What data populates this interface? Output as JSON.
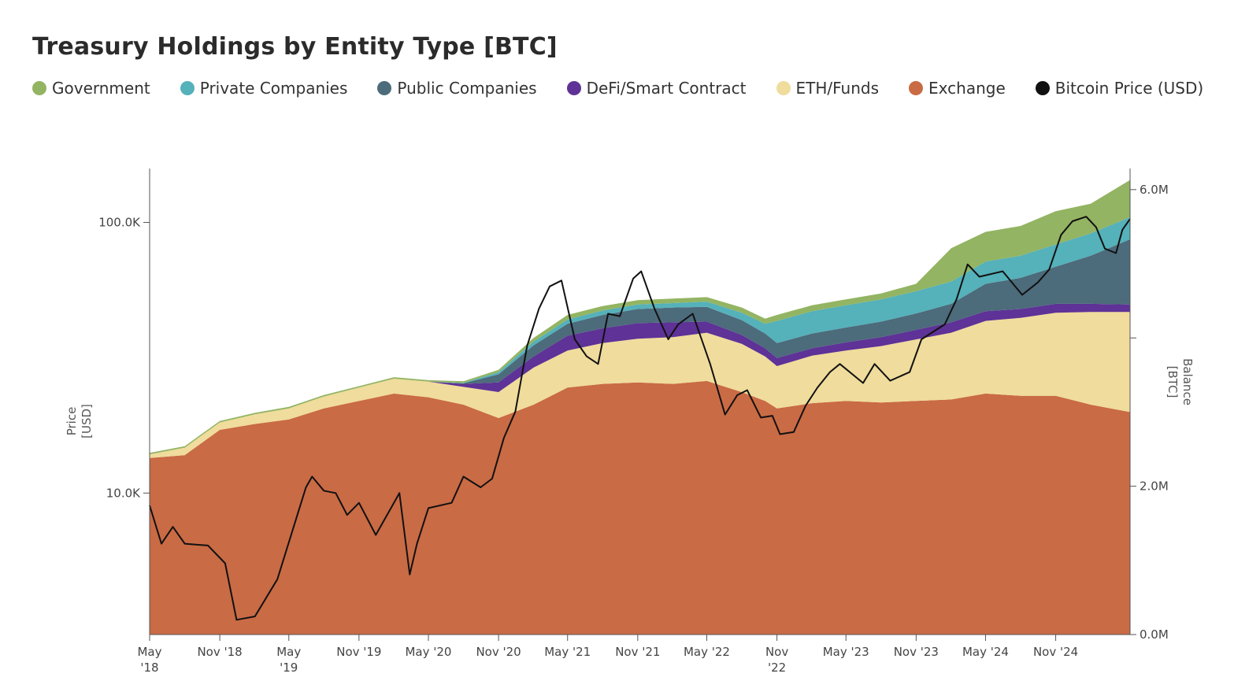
{
  "chart_data": {
    "type": "area",
    "title": "Treasury Holdings by Entity Type [BTC]",
    "left_axis": {
      "label_lines": [
        "Price",
        "[USD]"
      ],
      "scale": "log",
      "range": [
        3000,
        150000
      ],
      "ticks": [
        {
          "value": 10000,
          "label": "10.0K"
        },
        {
          "value": 100000,
          "label": "100.0K"
        }
      ]
    },
    "right_axis": {
      "label_lines": [
        "Balance",
        "[BTC]"
      ],
      "scale": "linear",
      "range": [
        0,
        6200000
      ],
      "ticks": [
        {
          "value": 0,
          "label": "0.0M"
        },
        {
          "value": 2000000,
          "label": "2.0M"
        },
        {
          "value": 4000000,
          "label": ""
        },
        {
          "value": 6000000,
          "label": "6.0M"
        }
      ]
    },
    "x_axis": {
      "range": [
        "2018-05-01",
        "2025-05-15"
      ],
      "ticks": [
        {
          "date": "2018-05-01",
          "lines": [
            "May",
            "'18"
          ]
        },
        {
          "date": "2018-11-01",
          "lines": [
            "Nov '18"
          ]
        },
        {
          "date": "2019-05-01",
          "lines": [
            "May",
            "'19"
          ]
        },
        {
          "date": "2019-11-01",
          "lines": [
            "Nov '19"
          ]
        },
        {
          "date": "2020-05-01",
          "lines": [
            "May '20"
          ]
        },
        {
          "date": "2020-11-01",
          "lines": [
            "Nov '20"
          ]
        },
        {
          "date": "2021-05-01",
          "lines": [
            "May '21"
          ]
        },
        {
          "date": "2021-11-01",
          "lines": [
            "Nov '21"
          ]
        },
        {
          "date": "2022-05-01",
          "lines": [
            "May '22"
          ]
        },
        {
          "date": "2022-11-01",
          "lines": [
            "Nov",
            "'22"
          ]
        },
        {
          "date": "2023-05-01",
          "lines": [
            "May '23"
          ]
        },
        {
          "date": "2023-11-01",
          "lines": [
            "Nov '23"
          ]
        },
        {
          "date": "2024-05-01",
          "lines": [
            "May '24"
          ]
        },
        {
          "date": "2024-11-01",
          "lines": [
            "Nov '24"
          ]
        }
      ]
    },
    "dates": [
      "2018-05-01",
      "2018-08-01",
      "2018-11-01",
      "2019-02-01",
      "2019-05-01",
      "2019-08-01",
      "2019-11-01",
      "2020-02-01",
      "2020-05-01",
      "2020-08-01",
      "2020-11-01",
      "2021-02-01",
      "2021-05-01",
      "2021-08-01",
      "2021-11-01",
      "2022-02-01",
      "2022-05-01",
      "2022-08-01",
      "2022-10-01",
      "2022-11-01",
      "2023-02-01",
      "2023-05-01",
      "2023-08-01",
      "2023-11-01",
      "2024-02-01",
      "2024-05-01",
      "2024-08-01",
      "2024-11-01",
      "2025-02-01",
      "2025-05-15"
    ],
    "series": [
      {
        "name": "Exchange",
        "color": "#c96b45",
        "values": [
          2380000,
          2420000,
          2760000,
          2840000,
          2900000,
          3050000,
          3150000,
          3250000,
          3200000,
          3100000,
          2920000,
          3100000,
          3330000,
          3380000,
          3400000,
          3380000,
          3420000,
          3270000,
          3150000,
          3050000,
          3120000,
          3150000,
          3130000,
          3150000,
          3170000,
          3250000,
          3220000,
          3220000,
          3100000,
          3000000
        ]
      },
      {
        "name": "ETH/Funds",
        "color": "#f0dc9c",
        "values": [
          50000,
          100000,
          100000,
          130000,
          150000,
          160000,
          180000,
          200000,
          210000,
          240000,
          350000,
          500000,
          500000,
          550000,
          590000,
          630000,
          650000,
          650000,
          600000,
          570000,
          640000,
          680000,
          760000,
          830000,
          900000,
          980000,
          1050000,
          1120000,
          1250000,
          1350000
        ]
      },
      {
        "name": "DeFi/Smart Contract",
        "color": "#5e3296",
        "values": [
          0,
          0,
          0,
          0,
          0,
          0,
          0,
          0,
          0,
          40000,
          130000,
          150000,
          200000,
          200000,
          210000,
          200000,
          150000,
          120000,
          110000,
          110000,
          100000,
          110000,
          120000,
          130000,
          140000,
          130000,
          120000,
          120000,
          110000,
          100000
        ]
      },
      {
        "name": "Public Companies",
        "color": "#4c6b7b",
        "values": [
          0,
          0,
          0,
          0,
          0,
          0,
          0,
          0,
          0,
          10000,
          110000,
          150000,
          160000,
          180000,
          190000,
          200000,
          200000,
          200000,
          200000,
          200000,
          200000,
          200000,
          210000,
          220000,
          250000,
          370000,
          420000,
          500000,
          650000,
          880000
        ]
      },
      {
        "name": "Private Companies",
        "color": "#55b1ba",
        "values": [
          0,
          0,
          0,
          0,
          0,
          0,
          0,
          0,
          0,
          5000,
          30000,
          50000,
          60000,
          60000,
          60000,
          60000,
          70000,
          100000,
          130000,
          300000,
          300000,
          300000,
          300000,
          300000,
          300000,
          300000,
          300000,
          300000,
          300000,
          300000
        ]
      },
      {
        "name": "Government",
        "color": "#93b462",
        "values": [
          20000,
          20000,
          20000,
          20000,
          20000,
          20000,
          20000,
          20000,
          20000,
          20000,
          30000,
          50000,
          60000,
          60000,
          60000,
          60000,
          60000,
          70000,
          70000,
          80000,
          80000,
          80000,
          80000,
          100000,
          450000,
          400000,
          400000,
          450000,
          400000,
          500000
        ]
      }
    ],
    "price_series": {
      "name": "Bitcoin Price (USD)",
      "color": "#111111",
      "points": [
        [
          "2018-05-01",
          9000
        ],
        [
          "2018-06-01",
          6500
        ],
        [
          "2018-07-01",
          7500
        ],
        [
          "2018-08-01",
          6500
        ],
        [
          "2018-10-01",
          6400
        ],
        [
          "2018-11-15",
          5500
        ],
        [
          "2018-12-15",
          3400
        ],
        [
          "2019-02-01",
          3500
        ],
        [
          "2019-04-01",
          4800
        ],
        [
          "2019-06-15",
          10500
        ],
        [
          "2019-07-01",
          11500
        ],
        [
          "2019-08-01",
          10200
        ],
        [
          "2019-09-01",
          10000
        ],
        [
          "2019-10-01",
          8300
        ],
        [
          "2019-11-01",
          9200
        ],
        [
          "2019-12-15",
          7000
        ],
        [
          "2020-02-15",
          10000
        ],
        [
          "2020-03-13",
          5000
        ],
        [
          "2020-04-01",
          6500
        ],
        [
          "2020-05-01",
          8800
        ],
        [
          "2020-07-01",
          9200
        ],
        [
          "2020-08-01",
          11500
        ],
        [
          "2020-09-15",
          10500
        ],
        [
          "2020-10-15",
          11300
        ],
        [
          "2020-11-15",
          16000
        ],
        [
          "2020-12-15",
          20000
        ],
        [
          "2021-01-15",
          35000
        ],
        [
          "2021-02-15",
          48000
        ],
        [
          "2021-03-15",
          58000
        ],
        [
          "2021-04-15",
          61000
        ],
        [
          "2021-05-20",
          37000
        ],
        [
          "2021-06-20",
          32000
        ],
        [
          "2021-07-20",
          30000
        ],
        [
          "2021-08-15",
          46000
        ],
        [
          "2021-09-15",
          45000
        ],
        [
          "2021-10-20",
          62000
        ],
        [
          "2021-11-10",
          66000
        ],
        [
          "2021-12-15",
          48000
        ],
        [
          "2022-01-20",
          37000
        ],
        [
          "2022-02-15",
          42000
        ],
        [
          "2022-03-25",
          46000
        ],
        [
          "2022-05-10",
          30000
        ],
        [
          "2022-06-18",
          19500
        ],
        [
          "2022-07-20",
          23000
        ],
        [
          "2022-08-15",
          24000
        ],
        [
          "2022-09-20",
          19000
        ],
        [
          "2022-10-20",
          19300
        ],
        [
          "2022-11-09",
          16500
        ],
        [
          "2022-12-15",
          16800
        ],
        [
          "2023-01-15",
          21000
        ],
        [
          "2023-02-15",
          24500
        ],
        [
          "2023-03-20",
          28000
        ],
        [
          "2023-04-15",
          30000
        ],
        [
          "2023-06-15",
          25500
        ],
        [
          "2023-07-15",
          30000
        ],
        [
          "2023-08-25",
          26000
        ],
        [
          "2023-10-15",
          28000
        ],
        [
          "2023-11-15",
          37000
        ],
        [
          "2024-01-15",
          42000
        ],
        [
          "2024-02-15",
          52000
        ],
        [
          "2024-03-15",
          70000
        ],
        [
          "2024-04-15",
          63000
        ],
        [
          "2024-06-15",
          66000
        ],
        [
          "2024-08-05",
          54000
        ],
        [
          "2024-09-15",
          60000
        ],
        [
          "2024-10-15",
          67000
        ],
        [
          "2024-11-15",
          90000
        ],
        [
          "2024-12-15",
          101000
        ],
        [
          "2025-01-20",
          105000
        ],
        [
          "2025-02-15",
          96000
        ],
        [
          "2025-03-10",
          80000
        ],
        [
          "2025-04-08",
          77000
        ],
        [
          "2025-04-25",
          94000
        ],
        [
          "2025-05-15",
          103000
        ]
      ]
    }
  }
}
